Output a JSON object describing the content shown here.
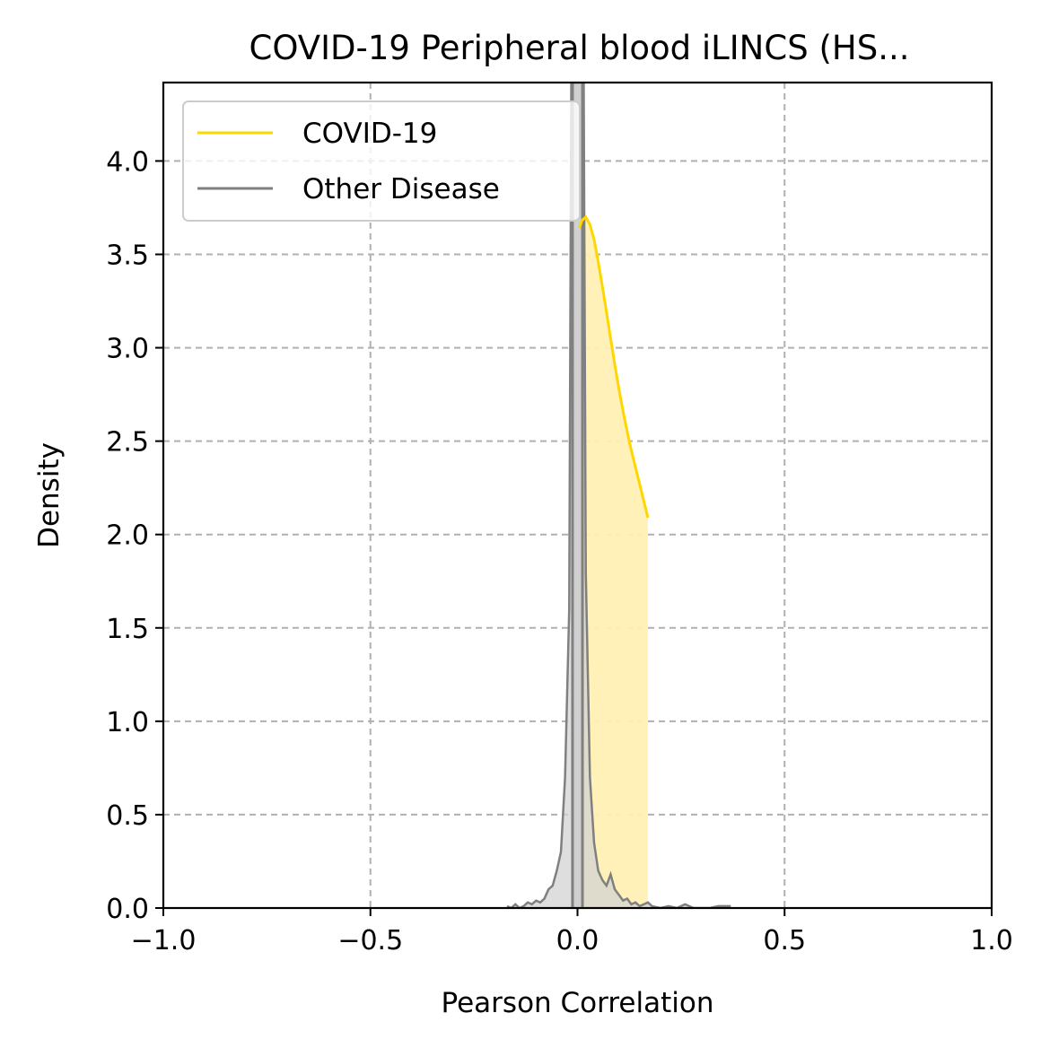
{
  "chart_data": {
    "type": "line",
    "title": "COVID-19 Peripheral blood iLINCS (HS...",
    "xlabel": "Pearson Correlation",
    "ylabel": "Density",
    "xlim": [
      -1.0,
      1.0
    ],
    "ylim": [
      0.0,
      4.42
    ],
    "xticks": [
      -1.0,
      -0.5,
      0.0,
      0.5,
      1.0
    ],
    "xtick_labels": [
      "−1.0",
      "−0.5",
      "0.0",
      "0.5",
      "1.0"
    ],
    "yticks": [
      0.0,
      0.5,
      1.0,
      1.5,
      2.0,
      2.5,
      3.0,
      3.5,
      4.0
    ],
    "ytick_labels": [
      "0.0",
      "0.5",
      "1.0",
      "1.5",
      "2.0",
      "2.5",
      "3.0",
      "3.5",
      "4.0"
    ],
    "grid": true,
    "legend_position": "upper-left",
    "series": [
      {
        "name": "COVID-19",
        "color": "#FFD700",
        "fill_color": "#FFF0B3",
        "x": [
          0.005,
          0.01,
          0.02,
          0.03,
          0.04,
          0.05,
          0.06,
          0.07,
          0.08,
          0.09,
          0.1,
          0.11,
          0.12,
          0.13,
          0.14,
          0.15,
          0.16,
          0.17
        ],
        "y": [
          3.64,
          3.68,
          3.7,
          3.66,
          3.58,
          3.46,
          3.33,
          3.19,
          3.05,
          2.91,
          2.78,
          2.66,
          2.55,
          2.45,
          2.36,
          2.27,
          2.18,
          2.09
        ]
      },
      {
        "name": "Other Disease",
        "color": "#808080",
        "fill_color": "#D3D3D3",
        "x": [
          -0.17,
          -0.16,
          -0.15,
          -0.14,
          -0.13,
          -0.12,
          -0.11,
          -0.1,
          -0.09,
          -0.08,
          -0.07,
          -0.06,
          -0.05,
          -0.04,
          -0.03,
          -0.02,
          -0.015,
          -0.01,
          -0.005,
          0.0,
          0.005,
          0.01,
          0.015,
          0.02,
          0.03,
          0.04,
          0.05,
          0.06,
          0.07,
          0.08,
          0.09,
          0.1,
          0.11,
          0.12,
          0.13,
          0.14,
          0.15,
          0.16,
          0.17,
          0.18,
          0.2,
          0.22,
          0.24,
          0.26,
          0.28,
          0.3,
          0.32,
          0.34,
          0.37
        ],
        "y": [
          0.01,
          0.0,
          0.02,
          0.0,
          0.01,
          0.03,
          0.02,
          0.04,
          0.03,
          0.05,
          0.1,
          0.12,
          0.2,
          0.3,
          0.7,
          1.6,
          4.5,
          4.42,
          4.42,
          4.42,
          4.42,
          4.42,
          4.42,
          1.8,
          0.7,
          0.35,
          0.2,
          0.15,
          0.12,
          0.18,
          0.1,
          0.07,
          0.04,
          0.05,
          0.02,
          0.03,
          0.01,
          0.02,
          0.03,
          0.01,
          0.0,
          0.01,
          0.0,
          0.02,
          0.0,
          0.0,
          0.0,
          0.01,
          0.01
        ]
      }
    ],
    "vertical_bands": [
      {
        "x_from": -0.012,
        "x_to": 0.012,
        "color": "#808080"
      }
    ]
  }
}
